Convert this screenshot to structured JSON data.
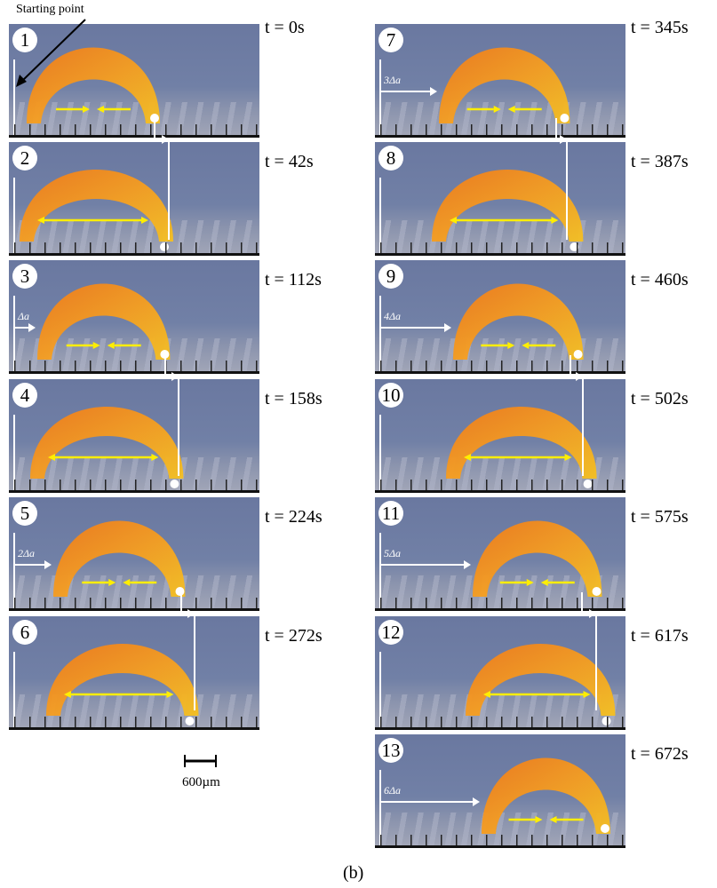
{
  "annotation": {
    "starting_point": "Starting point"
  },
  "scale_bar": {
    "label": "600µm"
  },
  "caption": "(b)",
  "panels": [
    {
      "num": "1",
      "time": "t = 0s",
      "delta": ""
    },
    {
      "num": "2",
      "time": "t = 42s",
      "delta": ""
    },
    {
      "num": "3",
      "time": "t = 112s",
      "delta": "Δa"
    },
    {
      "num": "4",
      "time": "t = 158s",
      "delta": ""
    },
    {
      "num": "5",
      "time": "t = 224s",
      "delta": "2Δa"
    },
    {
      "num": "6",
      "time": "t = 272s",
      "delta": ""
    },
    {
      "num": "7",
      "time": "t = 345s",
      "delta": "3Δa"
    },
    {
      "num": "8",
      "time": "t = 387s",
      "delta": ""
    },
    {
      "num": "9",
      "time": "t = 460s",
      "delta": "4Δa"
    },
    {
      "num": "10",
      "time": "t = 502s",
      "delta": ""
    },
    {
      "num": "11",
      "time": "t = 575s",
      "delta": "5Δa"
    },
    {
      "num": "12",
      "time": "t = 617s",
      "delta": ""
    },
    {
      "num": "13",
      "time": "t = 672s",
      "delta": "6Δa"
    }
  ],
  "colors": {
    "robot_orange": "#f07a1a",
    "robot_yellow": "#f5c020",
    "arrow_yellow": "#ffee00",
    "background_blue": "#6f7ea4"
  }
}
